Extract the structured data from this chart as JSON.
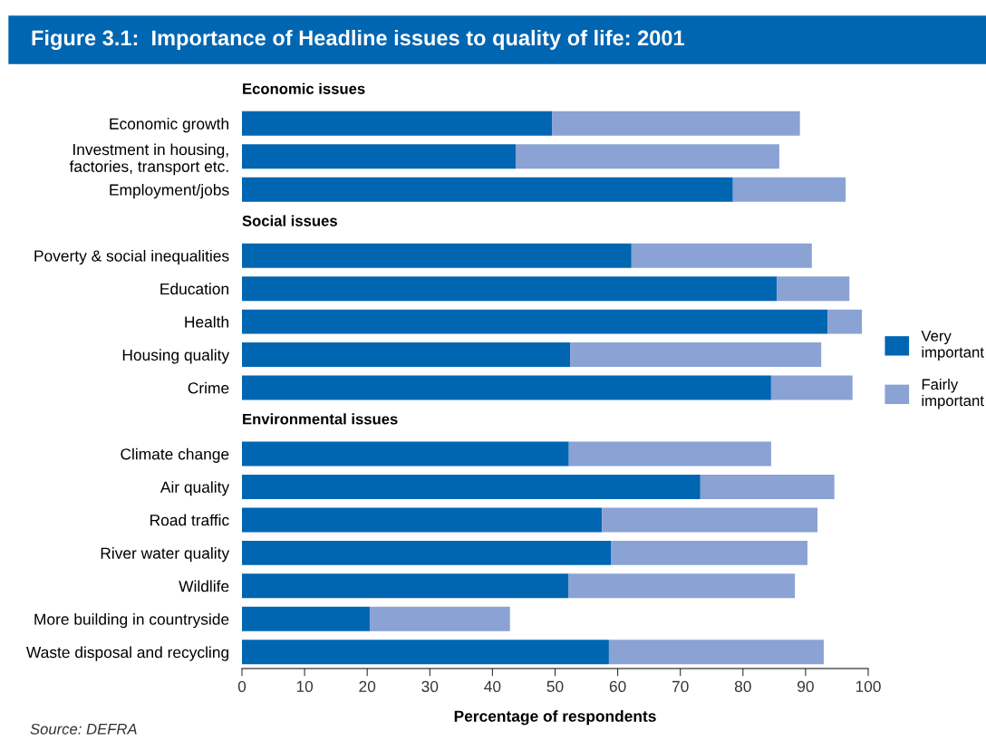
{
  "chart_data": {
    "type": "bar",
    "orientation": "horizontal",
    "stacked": true,
    "title": "Figure 3.1:  Importance of Headline issues to quality of life: 2001",
    "xlabel": "Percentage of respondents",
    "categories": [
      "Economic issues",
      "Economic growth",
      "Investment in housing,\nfactories, transport etc.",
      "Employment/jobs",
      "Social issues",
      "Poverty & social inequalities",
      "Education",
      "Health",
      "Housing quality",
      "Crime",
      "Environmental issues",
      "Climate change",
      "Air quality",
      "Road traffic",
      "River water quality",
      "Wildlife",
      "More building in countryside",
      "Waste disposal and recycling"
    ],
    "series": [
      {
        "name": "Very important",
        "color": "#0066b1",
        "values": [
          null,
          49.5,
          43.7,
          78.4,
          null,
          62.2,
          85.4,
          93.5,
          52.4,
          84.5,
          null,
          52.2,
          73.2,
          57.5,
          58.9,
          52.1,
          20.4,
          58.6
        ]
      },
      {
        "name": "Fairly important",
        "color": "#8aa2d4",
        "values": [
          null,
          39.6,
          42.1,
          18.0,
          null,
          28.8,
          11.6,
          5.5,
          40.1,
          13.0,
          null,
          32.3,
          21.4,
          34.4,
          31.4,
          36.2,
          22.4,
          34.3
        ]
      }
    ],
    "xlim": [
      0,
      100
    ],
    "xticks": [
      0,
      10,
      20,
      30,
      40,
      50,
      60,
      70,
      80,
      90,
      100
    ],
    "grid": false,
    "legend": "right",
    "annotations": [
      "Source: DEFRA"
    ]
  }
}
